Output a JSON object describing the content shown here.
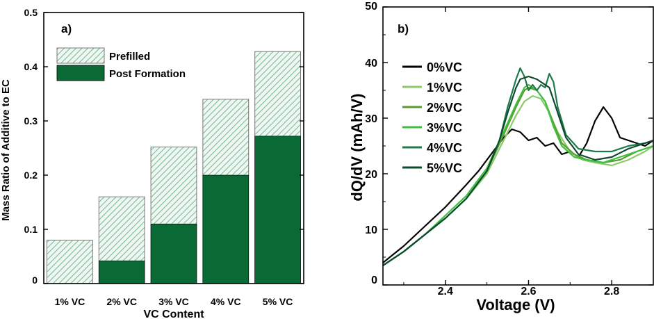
{
  "chart_data": [
    {
      "panel_label": "a)",
      "type": "bar",
      "xlabel": "VC Content",
      "ylabel": "Mass Ratio of Additive to EC",
      "ylim": [
        0,
        0.5
      ],
      "yticks": [
        "0",
        "0.1",
        "0.2",
        "0.3",
        "0.4",
        "0.5"
      ],
      "categories": [
        "1% VC",
        "2% VC",
        "3% VC",
        "4% VC",
        "5% VC"
      ],
      "legend_position": "top-left",
      "series": [
        {
          "name": "Prefilled",
          "values": [
            0.08,
            0.16,
            0.252,
            0.34,
            0.428
          ],
          "color": "#e9f4ee",
          "pattern": "diagonal-hatch"
        },
        {
          "name": "Post Formation",
          "values": [
            0,
            0.042,
            0.11,
            0.2,
            0.272
          ],
          "color": "#0a6a35"
        }
      ]
    },
    {
      "panel_label": "b)",
      "type": "line",
      "xlabel": "Voltage (V)",
      "ylabel": "dQ/dV (mAh/V)",
      "xlim": [
        2.25,
        2.9
      ],
      "ylim": [
        0,
        50
      ],
      "xticks": [
        "2.4",
        "2.6",
        "2.8"
      ],
      "yticks": [
        "0",
        "10",
        "20",
        "30",
        "40",
        "50"
      ],
      "legend_position": "top-left",
      "series": [
        {
          "name": "0%VC",
          "color": "#000000",
          "x": [
            2.25,
            2.3,
            2.35,
            2.4,
            2.45,
            2.48,
            2.5,
            2.52,
            2.54,
            2.56,
            2.58,
            2.6,
            2.62,
            2.64,
            2.66,
            2.68,
            2.7,
            2.72,
            2.74,
            2.76,
            2.78,
            2.8,
            2.82,
            2.84,
            2.86,
            2.88,
            2.9
          ],
          "y": [
            4,
            7,
            10.5,
            14,
            18,
            20.5,
            22.5,
            24.5,
            26.5,
            28,
            27.5,
            26,
            26.5,
            25,
            25.5,
            23.5,
            24,
            23,
            25.5,
            29.5,
            32,
            30,
            26.5,
            26,
            25.5,
            25,
            26
          ]
        },
        {
          "name": "1%VC",
          "color": "#8cc96c",
          "x": [
            2.25,
            2.3,
            2.35,
            2.4,
            2.45,
            2.5,
            2.54,
            2.57,
            2.59,
            2.61,
            2.63,
            2.65,
            2.67,
            2.7,
            2.73,
            2.76,
            2.8,
            2.84,
            2.88,
            2.9
          ],
          "y": [
            3.5,
            6,
            9,
            12,
            15.5,
            20,
            26,
            30.5,
            33,
            34,
            33.5,
            31,
            27.5,
            24,
            22.5,
            22,
            21.5,
            22.5,
            24,
            25
          ]
        },
        {
          "name": "2%VC",
          "color": "#5c9a30",
          "x": [
            2.25,
            2.3,
            2.35,
            2.4,
            2.45,
            2.5,
            2.54,
            2.57,
            2.59,
            2.6,
            2.62,
            2.64,
            2.66,
            2.68,
            2.71,
            2.74,
            2.78,
            2.82,
            2.86,
            2.9
          ],
          "y": [
            3.5,
            6,
            9,
            12,
            15.5,
            20.5,
            27,
            32,
            35,
            35.5,
            35,
            33,
            29,
            25.5,
            23.5,
            22.5,
            22,
            22.5,
            24,
            25
          ]
        },
        {
          "name": "3%VC",
          "color": "#3fbf3f",
          "x": [
            2.25,
            2.3,
            2.35,
            2.4,
            2.45,
            2.5,
            2.54,
            2.57,
            2.59,
            2.6,
            2.62,
            2.64,
            2.66,
            2.68,
            2.71,
            2.74,
            2.78,
            2.82,
            2.86,
            2.9
          ],
          "y": [
            3.5,
            6,
            9,
            12.5,
            16,
            21,
            27.5,
            32.5,
            35.5,
            36,
            35,
            33,
            28.5,
            25,
            23,
            22.5,
            22,
            23,
            24,
            25
          ]
        },
        {
          "name": "4%VC",
          "color": "#1e7a4a",
          "x": [
            2.25,
            2.3,
            2.35,
            2.4,
            2.45,
            2.5,
            2.53,
            2.55,
            2.57,
            2.58,
            2.59,
            2.6,
            2.61,
            2.62,
            2.63,
            2.64,
            2.65,
            2.66,
            2.67,
            2.69,
            2.72,
            2.76,
            2.8,
            2.84,
            2.88,
            2.9
          ],
          "y": [
            3.5,
            6,
            9,
            12,
            15.5,
            20.5,
            26,
            32,
            37,
            39,
            37.5,
            35,
            36,
            35,
            36,
            35.5,
            38,
            36.5,
            32,
            27,
            24.5,
            24,
            24,
            25,
            25.5,
            26
          ]
        },
        {
          "name": "5%VC",
          "color": "#0e4a2e",
          "x": [
            2.25,
            2.3,
            2.35,
            2.4,
            2.45,
            2.5,
            2.53,
            2.55,
            2.57,
            2.58,
            2.6,
            2.62,
            2.64,
            2.65,
            2.67,
            2.69,
            2.72,
            2.76,
            2.8,
            2.84,
            2.88,
            2.9
          ],
          "y": [
            3.5,
            6,
            9,
            12,
            15.5,
            20.5,
            26,
            31,
            35.5,
            37,
            37.5,
            37,
            36,
            35.5,
            31,
            26.5,
            23.5,
            22.5,
            23,
            24.5,
            25.5,
            26
          ]
        }
      ]
    }
  ]
}
